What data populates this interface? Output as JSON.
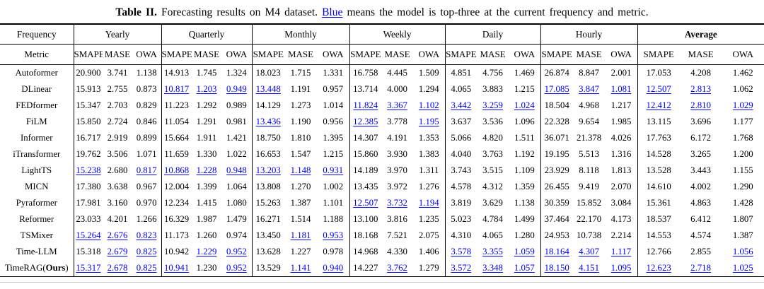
{
  "caption": {
    "label": "Table II.",
    "after_label": " Forecasting results on M4 dataset. ",
    "highlight_word": "Blue",
    "rest": " means the model is top-three at the current frequency and metric.",
    "highlight_color": "#0000EE"
  },
  "table": {
    "corner_row1": "Frequency",
    "corner_row2": "Metric",
    "groups": [
      "Yearly",
      "Quarterly",
      "Monthly",
      "Weekly",
      "Daily",
      "Hourly",
      "Average"
    ],
    "bold_group": "Average",
    "metrics": [
      "SMAPE",
      "MASE",
      "OWA"
    ],
    "blue_color": "#0000EE",
    "rows": [
      {
        "model": "Autoformer",
        "values": [
          "20.900",
          "3.741",
          "1.138",
          "14.913",
          "1.745",
          "1.324",
          "18.023",
          "1.715",
          "1.331",
          "16.758",
          "4.445",
          "1.509",
          "4.851",
          "4.756",
          "1.469",
          "26.874",
          "8.847",
          "2.001",
          "17.053",
          "4.208",
          "1.462"
        ],
        "blue": []
      },
      {
        "model": "DLinear",
        "values": [
          "15.913",
          "2.755",
          "0.873",
          "10.817",
          "1.203",
          "0.949",
          "13.448",
          "1.191",
          "0.957",
          "13.714",
          "4.000",
          "1.294",
          "4.065",
          "3.883",
          "1.215",
          "17.085",
          "3.847",
          "1.081",
          "12.507",
          "2.813",
          "1.062"
        ],
        "blue": [
          3,
          4,
          5,
          6,
          15,
          16,
          17,
          18,
          19
        ]
      },
      {
        "model": "FEDformer",
        "values": [
          "15.347",
          "2.703",
          "0.829",
          "11.223",
          "1.292",
          "0.989",
          "14.129",
          "1.273",
          "1.014",
          "11.824",
          "3.367",
          "1.102",
          "3.442",
          "3.259",
          "1.024",
          "18.504",
          "4.968",
          "1.217",
          "12.412",
          "2.810",
          "1.029"
        ],
        "blue": [
          9,
          10,
          11,
          12,
          13,
          14,
          18,
          19,
          20
        ]
      },
      {
        "model": "FiLM",
        "values": [
          "15.850",
          "2.724",
          "0.846",
          "11.054",
          "1.291",
          "0.981",
          "13.436",
          "1.190",
          "0.956",
          "12.385",
          "3.778",
          "1.195",
          "3.637",
          "3.536",
          "1.096",
          "22.328",
          "9.654",
          "1.985",
          "13.115",
          "3.696",
          "1.177"
        ],
        "blue": [
          6,
          9,
          11
        ]
      },
      {
        "model": "Informer",
        "values": [
          "16.717",
          "2.919",
          "0.899",
          "15.664",
          "1.911",
          "1.421",
          "18.750",
          "1.810",
          "1.395",
          "14.307",
          "4.191",
          "1.353",
          "5.066",
          "4.820",
          "1.511",
          "36.071",
          "21.378",
          "4.026",
          "17.763",
          "6.172",
          "1.768"
        ],
        "blue": []
      },
      {
        "model": "iTransformer",
        "values": [
          "19.762",
          "3.506",
          "1.071",
          "11.659",
          "1.330",
          "1.022",
          "16.653",
          "1.547",
          "1.215",
          "15.860",
          "3.930",
          "1.383",
          "4.040",
          "3.763",
          "1.192",
          "19.195",
          "5.513",
          "1.316",
          "14.528",
          "3.265",
          "1.200"
        ],
        "blue": []
      },
      {
        "model": "LightTS",
        "values": [
          "15.238",
          "2.680",
          "0.817",
          "10.868",
          "1.228",
          "0.948",
          "13.203",
          "1.148",
          "0.931",
          "14.189",
          "3.970",
          "1.311",
          "3.743",
          "3.515",
          "1.109",
          "23.929",
          "8.118",
          "1.813",
          "13.528",
          "3.443",
          "1.155"
        ],
        "blue": [
          0,
          2,
          3,
          4,
          5,
          6,
          7,
          8
        ]
      },
      {
        "model": "MICN",
        "values": [
          "17.380",
          "3.638",
          "0.967",
          "12.004",
          "1.399",
          "1.064",
          "13.808",
          "1.270",
          "1.002",
          "13.435",
          "3.972",
          "1.276",
          "4.578",
          "4.312",
          "1.359",
          "26.455",
          "9.419",
          "2.070",
          "14.610",
          "4.002",
          "1.290"
        ],
        "blue": []
      },
      {
        "model": "Pyraformer",
        "values": [
          "17.981",
          "3.160",
          "0.970",
          "12.234",
          "1.415",
          "1.080",
          "15.263",
          "1.387",
          "1.101",
          "12.507",
          "3.732",
          "1.194",
          "3.819",
          "3.629",
          "1.138",
          "30.359",
          "15.852",
          "3.084",
          "15.361",
          "4.863",
          "1.428"
        ],
        "blue": [
          9,
          10,
          11
        ]
      },
      {
        "model": "Reformer",
        "values": [
          "23.033",
          "4.201",
          "1.266",
          "16.329",
          "1.987",
          "1.479",
          "16.271",
          "1.514",
          "1.188",
          "13.100",
          "3.816",
          "1.235",
          "5.023",
          "4.784",
          "1.499",
          "37.464",
          "22.170",
          "4.173",
          "18.537",
          "6.412",
          "1.807"
        ],
        "blue": []
      },
      {
        "model": "TSMixer",
        "values": [
          "15.264",
          "2.676",
          "0.823",
          "11.173",
          "1.260",
          "0.974",
          "13.450",
          "1.181",
          "0.953",
          "18.168",
          "7.521",
          "2.075",
          "4.310",
          "4.065",
          "1.280",
          "24.953",
          "10.738",
          "2.214",
          "14.553",
          "4.574",
          "1.387"
        ],
        "blue": [
          0,
          1,
          2,
          7,
          8
        ]
      },
      {
        "model": "Time-LLM",
        "values": [
          "15.318",
          "2.679",
          "0.825",
          "10.942",
          "1.229",
          "0.952",
          "13.628",
          "1.227",
          "0.978",
          "14.968",
          "4.330",
          "1.406",
          "3.578",
          "3.355",
          "1.059",
          "18.164",
          "4.307",
          "1.117",
          "12.766",
          "2.855",
          "1.056"
        ],
        "blue": [
          1,
          2,
          4,
          5,
          12,
          13,
          14,
          15,
          16,
          17,
          20
        ]
      },
      {
        "model": "TimeRAG(Ours)",
        "model_prefix": "TimeRAG(",
        "model_bold": "Ours",
        "model_suffix": ")",
        "values": [
          "15.317",
          "2.678",
          "0.825",
          "10.941",
          "1.230",
          "0.952",
          "13.529",
          "1.141",
          "0.940",
          "14.227",
          "3.762",
          "1.279",
          "3.572",
          "3.348",
          "1.057",
          "18.150",
          "4.151",
          "1.095",
          "12.623",
          "2.718",
          "1.025"
        ],
        "blue": [
          0,
          1,
          2,
          3,
          5,
          7,
          8,
          10,
          12,
          13,
          14,
          15,
          16,
          17,
          18,
          19,
          20
        ]
      }
    ]
  }
}
